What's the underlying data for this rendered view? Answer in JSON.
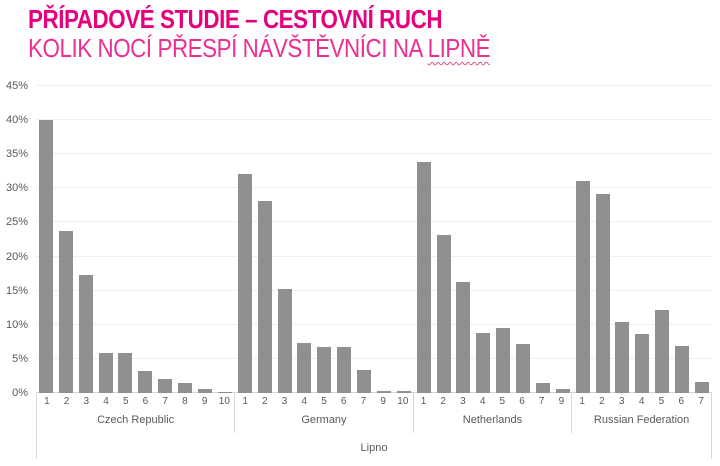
{
  "header": {
    "title": "PŘÍPADOVÉ STUDIE – CESTOVNÍ RUCH",
    "subtitle_prefix": "KOLIK NOCÍ PŘESPÍ NÁVŠTĚVNÍCI NA ",
    "subtitle_underlined": "LIPNĚ"
  },
  "colors": {
    "title_magenta": "#e6007e",
    "subtitle_pink": "#ec2f92",
    "bar_gray": "#8f8f8f",
    "axis_text_gray": "#595959",
    "gridline_gray": "#efefef",
    "axis_line_gray": "#d9d9d9"
  },
  "chart_data": {
    "type": "bar",
    "title": "",
    "xlabel": "Lipno",
    "ylabel": "",
    "ylim": [
      0,
      45
    ],
    "yticks": [
      0,
      5,
      10,
      15,
      20,
      25,
      30,
      35,
      40,
      45
    ],
    "ytick_suffix": "%",
    "grid": true,
    "legend": false,
    "bar_color": "#8f8f8f",
    "groups": [
      {
        "name": "Czech Republic",
        "categories": [
          "1",
          "2",
          "3",
          "4",
          "5",
          "6",
          "7",
          "8",
          "9",
          "10"
        ],
        "values": [
          40.0,
          23.7,
          17.3,
          5.8,
          5.8,
          3.2,
          2.1,
          1.4,
          0.6,
          0.1
        ]
      },
      {
        "name": "Germany",
        "categories": [
          "1",
          "2",
          "3",
          "4",
          "5",
          "6",
          "7",
          "9",
          "10"
        ],
        "values": [
          32.1,
          28.2,
          15.2,
          7.4,
          6.7,
          6.7,
          3.4,
          0.3,
          0.3
        ]
      },
      {
        "name": "Netherlands",
        "categories": [
          "1",
          "2",
          "3",
          "4",
          "5",
          "6",
          "7",
          "9"
        ],
        "values": [
          33.9,
          23.1,
          16.2,
          8.8,
          9.5,
          7.2,
          1.5,
          0.6
        ]
      },
      {
        "name": "Russian Federation",
        "categories": [
          "1",
          "2",
          "3",
          "4",
          "5",
          "6",
          "7"
        ],
        "values": [
          31.1,
          29.2,
          10.4,
          8.6,
          12.1,
          6.9,
          1.6
        ]
      }
    ]
  }
}
